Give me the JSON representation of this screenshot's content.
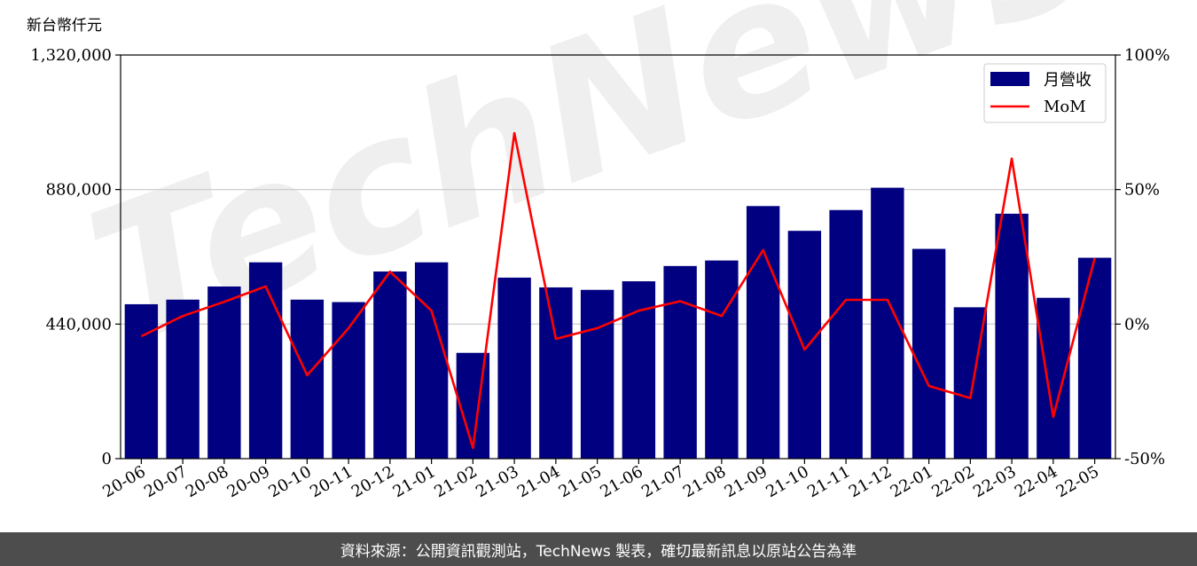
{
  "chart_data": {
    "type": "bar+line",
    "unit_label": "新台幣仟元",
    "categories": [
      "20-06",
      "20-07",
      "20-08",
      "20-09",
      "20-10",
      "20-11",
      "20-12",
      "21-01",
      "21-02",
      "21-03",
      "21-04",
      "21-05",
      "21-06",
      "21-07",
      "21-08",
      "21-09",
      "21-10",
      "21-11",
      "21-12",
      "22-01",
      "22-02",
      "22-03",
      "22-04",
      "22-05"
    ],
    "series": [
      {
        "name": "月營收",
        "axis": "left",
        "kind": "bar",
        "color": "#000080",
        "values": [
          505000,
          520000,
          563000,
          642000,
          520000,
          512000,
          612000,
          642000,
          346000,
          592000,
          560000,
          552000,
          580000,
          630000,
          648000,
          826000,
          745000,
          813000,
          886000,
          686000,
          495000,
          801000,
          526000,
          657000
        ]
      },
      {
        "name": "MoM",
        "axis": "right",
        "kind": "line",
        "color": "#ff0000",
        "values": [
          -4.5,
          3.0,
          8.3,
          14.0,
          -19.0,
          -1.5,
          19.5,
          5.0,
          -46.0,
          71.0,
          -5.5,
          -1.5,
          5.0,
          8.5,
          3.0,
          27.5,
          -9.5,
          9.0,
          9.0,
          -23.0,
          -27.5,
          61.5,
          -34.5,
          24.5
        ]
      }
    ],
    "left_axis": {
      "ylim": [
        0,
        1320000
      ],
      "ticks": [
        0,
        440000,
        880000,
        1320000
      ],
      "tick_labels": [
        "0",
        "440,000",
        "880,000",
        "1,320,000"
      ]
    },
    "right_axis": {
      "ylim": [
        -50,
        100
      ],
      "ticks": [
        -50,
        0,
        50,
        100
      ],
      "tick_labels": [
        "-50%",
        "0%",
        "50%",
        "100%"
      ]
    },
    "grid": "horizontal",
    "legend_position": "top-right",
    "watermark": "TechNews"
  },
  "footer": {
    "source_text": "資料來源：公開資訊觀測站，TechNews 製表，確切最新訊息以原站公告為準"
  }
}
